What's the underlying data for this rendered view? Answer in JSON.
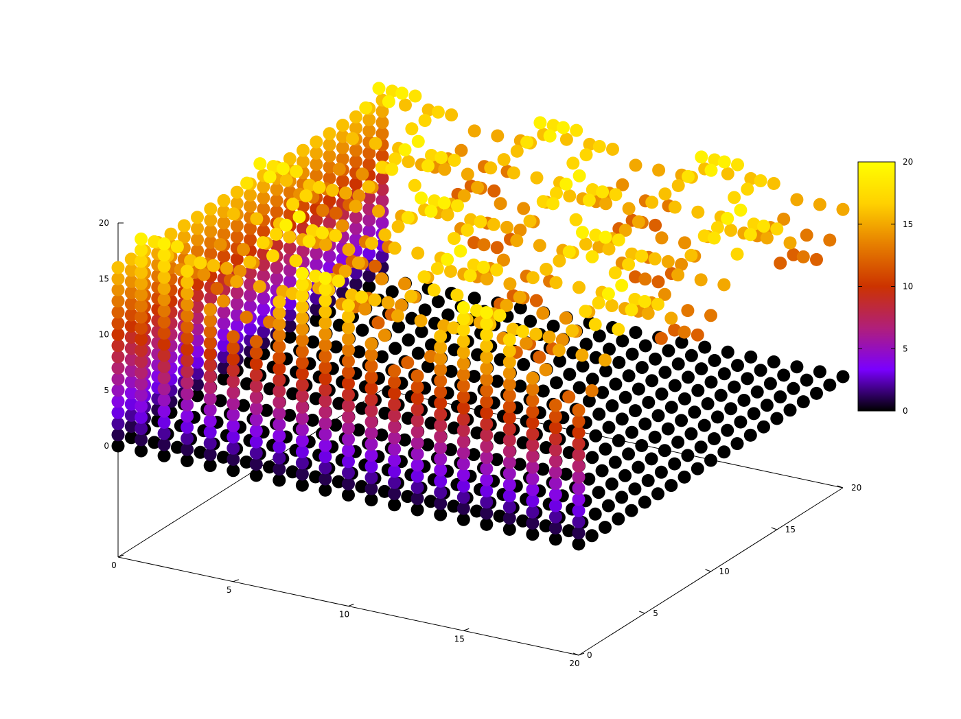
{
  "chart_data": {
    "type": "scatter",
    "subtype": "3d-points",
    "point_style": "filled circles",
    "grid": "x/y integer lattice 0..20 in steps of 1, z in layers 0..20 in steps of 1",
    "x_ticks": [
      "0",
      "5",
      "10",
      "15",
      "20"
    ],
    "y_ticks": [
      "0",
      "5",
      "10",
      "15",
      "20"
    ],
    "z_ticks": [
      "0",
      "5",
      "10",
      "15",
      "20"
    ],
    "xlim": [
      0,
      20
    ],
    "ylim": [
      0,
      20
    ],
    "zlim": [
      0,
      20
    ],
    "value_range": [
      0,
      20
    ],
    "colorbar": {
      "position": "right",
      "ticks": [
        "0",
        "5",
        "10",
        "15",
        "20"
      ],
      "range": [
        0,
        20
      ],
      "palette": [
        "#000000",
        "#7a00ff",
        "#b01f7a",
        "#cc3300",
        "#e67e00",
        "#ffd100",
        "#ffff00"
      ]
    }
  }
}
